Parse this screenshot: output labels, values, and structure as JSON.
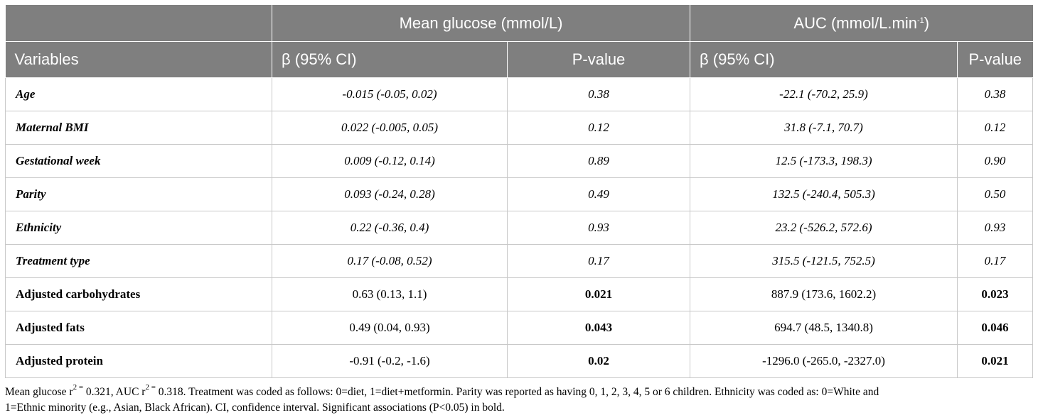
{
  "table": {
    "group_headers": {
      "mean_glucose": "Mean glucose (mmol/L)",
      "auc_base": "AUC (mmol/L.min",
      "auc_sup": "-1",
      "auc_close": ")"
    },
    "column_headers": [
      "Variables",
      "β (95% CI)",
      "P-value",
      "β (95% CI)",
      "P-value"
    ],
    "rows": [
      {
        "variable": "Age",
        "mg_beta": "-0.015 (-0.05, 0.02)",
        "mg_p": "0.38",
        "auc_beta": "-22.1 (-70.2, 25.9)",
        "auc_p": "0.38"
      },
      {
        "variable": "Maternal BMI",
        "mg_beta": "0.022 (-0.005, 0.05)",
        "mg_p": "0.12",
        "auc_beta": "31.8 (-7.1, 70.7)",
        "auc_p": "0.12"
      },
      {
        "variable": "Gestational week",
        "mg_beta": "0.009 (-0.12, 0.14)",
        "mg_p": "0.89",
        "auc_beta": "12.5 (-173.3, 198.3)",
        "auc_p": "0.90"
      },
      {
        "variable": "Parity",
        "mg_beta": "0.093 (-0.24, 0.28)",
        "mg_p": "0.49",
        "auc_beta": "132.5 (-240.4, 505.3)",
        "auc_p": "0.50"
      },
      {
        "variable": "Ethnicity",
        "mg_beta": "0.22 (-0.36, 0.4)",
        "mg_p": "0.93",
        "auc_beta": "23.2 (-526.2, 572.6)",
        "auc_p": "0.93"
      },
      {
        "variable": "Treatment type",
        "mg_beta": "0.17 (-0.08, 0.52)",
        "mg_p": "0.17",
        "auc_beta": "315.5 (-121.5, 752.5)",
        "auc_p": "0.17"
      },
      {
        "variable": "Adjusted carbohydrates",
        "mg_beta": "0.63 (0.13, 1.1)",
        "mg_p": "0.021",
        "auc_beta": "887.9 (173.6, 1602.2)",
        "auc_p": "0.023"
      },
      {
        "variable": "Adjusted fats",
        "mg_beta": "0.49 (0.04, 0.93)",
        "mg_p": "0.043",
        "auc_beta": "694.7 (48.5, 1340.8)",
        "auc_p": "0.046"
      },
      {
        "variable": "Adjusted protein",
        "mg_beta": "-0.91 (-0.2, -1.6)",
        "mg_p": "0.02",
        "auc_beta": "-1296.0 (-265.0, -2327.0)",
        "auc_p": "0.021"
      }
    ]
  },
  "footnote": {
    "p1": "Mean glucose r",
    "sup1": "2 =",
    "p2": " 0.321, AUC r",
    "sup2": "2 =",
    "p3": " 0.318. Treatment was coded as follows: 0=diet, 1=diet+metformin. Parity was reported as having 0, 1, 2, 3, 4, 5 or 6 children. Ethnicity was coded as: 0=White and",
    "line2": "1=Ethnic minority (e.g., Asian, Black African). CI, confidence interval. Significant associations (P<0.05) in bold."
  }
}
